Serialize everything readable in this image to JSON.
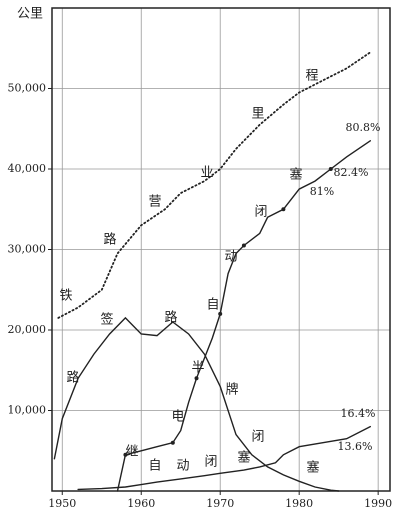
{
  "chart_data": {
    "type": "line",
    "ylabel": "公里",
    "xlim": [
      1948.7,
      1991.5
    ],
    "ylim": [
      0,
      60000
    ],
    "xticks": [
      1950,
      1960,
      1970,
      1980,
      1990
    ],
    "yticks": [
      {
        "value": 10000,
        "label": "10,000"
      },
      {
        "value": 20000,
        "label": "20,000"
      },
      {
        "value": 30000,
        "label": "30,000"
      },
      {
        "value": 40000,
        "label": "40,000"
      },
      {
        "value": 50000,
        "label": "50,000"
      }
    ],
    "grid": true,
    "series": [
      {
        "label": [
          "铁",
          "路",
          "营",
          "业",
          "里",
          "程"
        ],
        "style": "dotted",
        "color": "#222",
        "x": [
          1949.5,
          1952,
          1955,
          1957,
          1960,
          1963,
          1965,
          1968,
          1970,
          1972,
          1975,
          1978,
          1980,
          1983,
          1986,
          1989
        ],
        "values": [
          21500,
          22800,
          25000,
          29500,
          33000,
          35000,
          37000,
          38500,
          40000,
          42500,
          45500,
          48000,
          49500,
          51000,
          52500,
          54500
        ]
      },
      {
        "label": [
          "路",
          "签",
          "路",
          "牌",
          "闭",
          "塞"
        ],
        "style": "solid",
        "color": "#222",
        "x": [
          1949,
          1950,
          1952,
          1954,
          1956,
          1958,
          1960,
          1962,
          1964,
          1966,
          1968,
          1970,
          1972,
          1974,
          1976,
          1978,
          1980,
          1982,
          1984,
          1985
        ],
        "values": [
          4000,
          9000,
          14000,
          17000,
          19500,
          21500,
          19500,
          19300,
          21000,
          19500,
          17000,
          13000,
          7000,
          4500,
          3000,
          2000,
          1200,
          500,
          100,
          0
        ]
      },
      {
        "label": [
          "继",
          "电",
          "半",
          "自",
          "动",
          "闭",
          "塞"
        ],
        "style": "markers",
        "color": "#222",
        "x": [
          1957,
          1958,
          1960,
          1962,
          1964,
          1965,
          1966,
          1967,
          1968,
          1969,
          1970,
          1971,
          1972,
          1973,
          1975,
          1976,
          1978,
          1980,
          1982,
          1984,
          1986,
          1989
        ],
        "values": [
          0,
          4500,
          5000,
          5500,
          6000,
          7500,
          11000,
          14000,
          16500,
          19000,
          22000,
          27000,
          29500,
          30500,
          32000,
          34000,
          35000,
          37500,
          38500,
          40000,
          41500,
          43500
        ]
      },
      {
        "label": [
          "自",
          "动",
          "闭",
          "塞"
        ],
        "style": "solid",
        "color": "#222",
        "x": [
          1952,
          1955,
          1958,
          1960,
          1962,
          1965,
          1968,
          1970,
          1973,
          1975,
          1977,
          1978,
          1980,
          1983,
          1986,
          1989
        ],
        "values": [
          200,
          300,
          500,
          800,
          1100,
          1500,
          1900,
          2200,
          2600,
          3000,
          3500,
          4500,
          5500,
          6000,
          6500,
          8000
        ]
      }
    ],
    "annotations": [
      "80.8%",
      "82.4%",
      "81%",
      "16.4%",
      "13.6%"
    ]
  }
}
